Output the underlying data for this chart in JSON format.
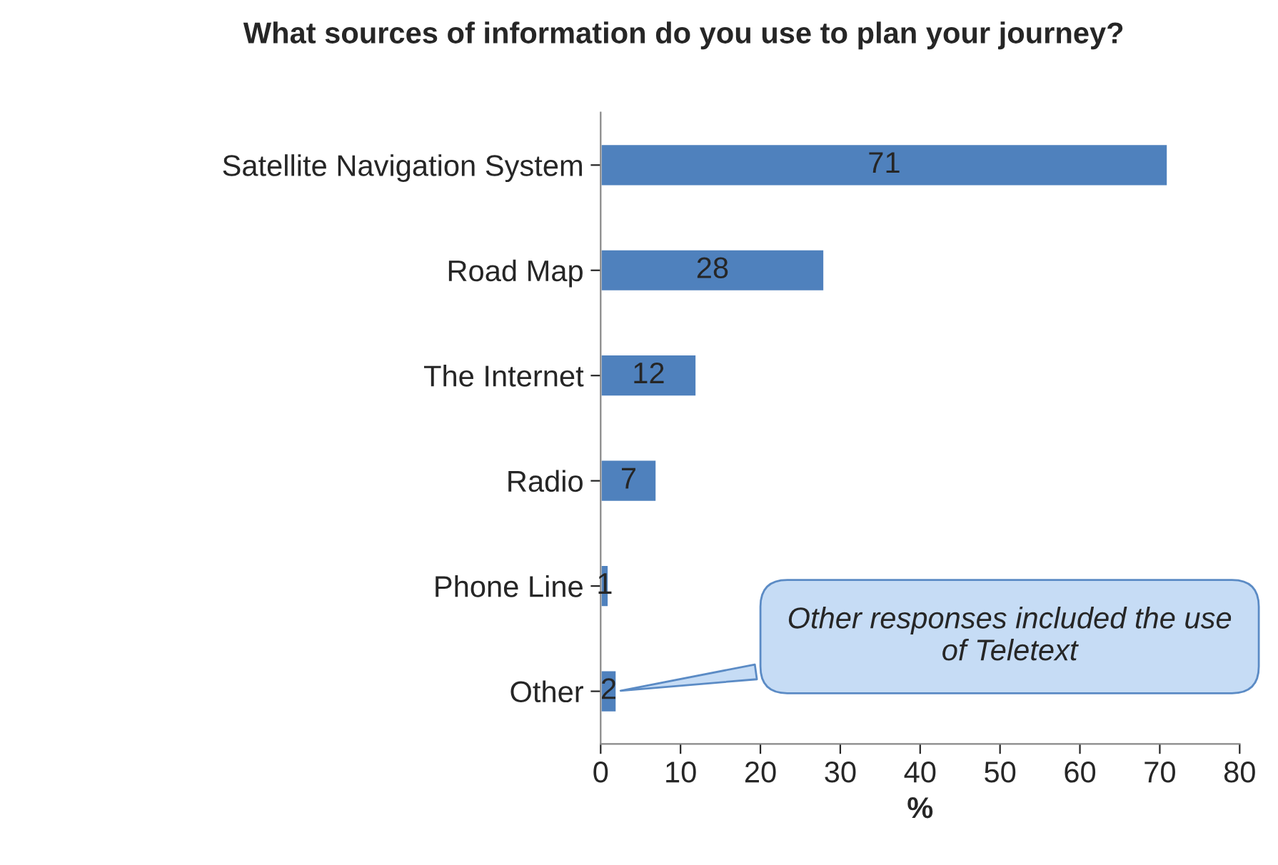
{
  "chart_data": {
    "type": "bar",
    "orientation": "horizontal",
    "title": "What sources of information do you use to plan your journey?",
    "categories": [
      "Satellite Navigation System",
      "Road Map",
      "The Internet",
      "Radio",
      "Phone Line",
      "Other"
    ],
    "values": [
      71,
      28,
      12,
      7,
      1,
      2
    ],
    "color": "#4f81bd",
    "data_labels": true,
    "xlim": [
      0,
      80
    ],
    "xticks": [
      0,
      10,
      20,
      30,
      40,
      50,
      60,
      70,
      80
    ],
    "xlabel": "%",
    "grid": false,
    "legend": false,
    "annotations": [
      {
        "text": "Other responses included the use\nof Teletext",
        "x": 2,
        "y": "Other"
      }
    ]
  }
}
